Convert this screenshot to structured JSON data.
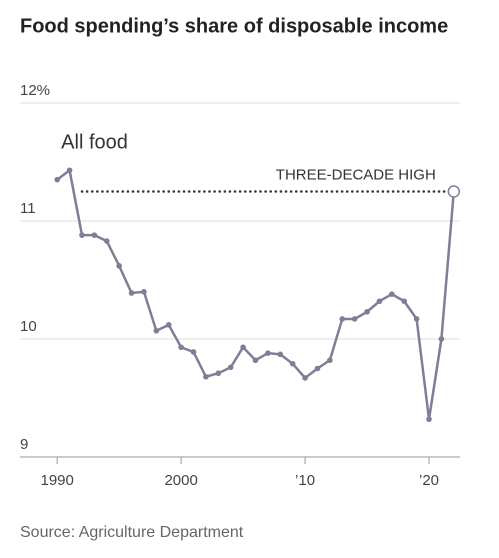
{
  "chart_data": {
    "type": "line",
    "title": "Food spending’s share of disposable income",
    "source": "Source: Agriculture Department",
    "x": [
      1990,
      1991,
      1992,
      1993,
      1994,
      1995,
      1996,
      1997,
      1998,
      1999,
      2000,
      2001,
      2002,
      2003,
      2004,
      2005,
      2006,
      2007,
      2008,
      2009,
      2010,
      2011,
      2012,
      2013,
      2014,
      2015,
      2016,
      2017,
      2018,
      2019,
      2020,
      2021,
      2022
    ],
    "series": [
      {
        "name": "All food",
        "color": "#7c7f96",
        "values": [
          11.35,
          11.43,
          10.88,
          10.88,
          10.83,
          10.62,
          10.39,
          10.4,
          10.07,
          10.12,
          9.93,
          9.89,
          9.68,
          9.71,
          9.76,
          9.93,
          9.82,
          9.88,
          9.87,
          9.79,
          9.67,
          9.75,
          9.82,
          10.17,
          10.17,
          10.23,
          10.32,
          10.38,
          10.32,
          10.17,
          9.32,
          10.0,
          11.25
        ]
      }
    ],
    "reference_line": {
      "value": 11.25,
      "x_range": [
        1992,
        2022
      ],
      "label": "THREE-DECADE HIGH"
    },
    "xlim": [
      1987,
      2022.5
    ],
    "xticks": [
      1990,
      2000,
      {
        "value": 2010,
        "label": "’10"
      },
      {
        "value": 2020,
        "label": "’20"
      }
    ],
    "ylim": [
      9,
      12
    ],
    "yticks": [
      {
        "value": 12,
        "label": "12%"
      },
      11,
      10,
      9
    ],
    "grid": true
  }
}
